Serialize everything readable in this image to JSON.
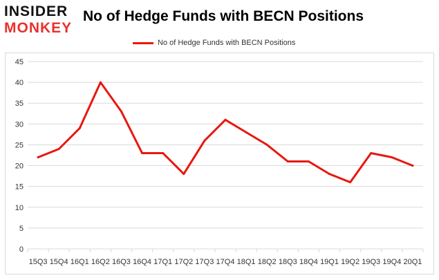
{
  "logo": {
    "top_text": "INSIDER",
    "bottom_text": "MONKEY"
  },
  "colors": {
    "series": "#e8170e",
    "grid": "#d9d9d9",
    "logo_red": "#e8322c"
  },
  "chart_data": {
    "type": "line",
    "title": "No of Hedge Funds with BECN Positions",
    "xlabel": "",
    "ylabel": "",
    "categories": [
      "15Q3",
      "15Q4",
      "16Q1",
      "16Q2",
      "16Q3",
      "16Q4",
      "17Q1",
      "17Q2",
      "17Q3",
      "17Q4",
      "18Q1",
      "18Q2",
      "18Q3",
      "18Q4",
      "19Q1",
      "19Q2",
      "19Q3",
      "19Q4",
      "20Q1"
    ],
    "series": [
      {
        "name": "No of Hedge Funds with BECN Positions",
        "values": [
          22,
          24,
          29,
          40,
          33,
          23,
          23,
          18,
          26,
          31,
          28,
          25,
          21,
          21,
          18,
          16,
          23,
          22,
          20
        ]
      }
    ],
    "ylim": [
      0,
      45
    ],
    "yticks": [
      0,
      5,
      10,
      15,
      20,
      25,
      30,
      35,
      40,
      45
    ],
    "grid": true,
    "legend_position": "top-center"
  }
}
